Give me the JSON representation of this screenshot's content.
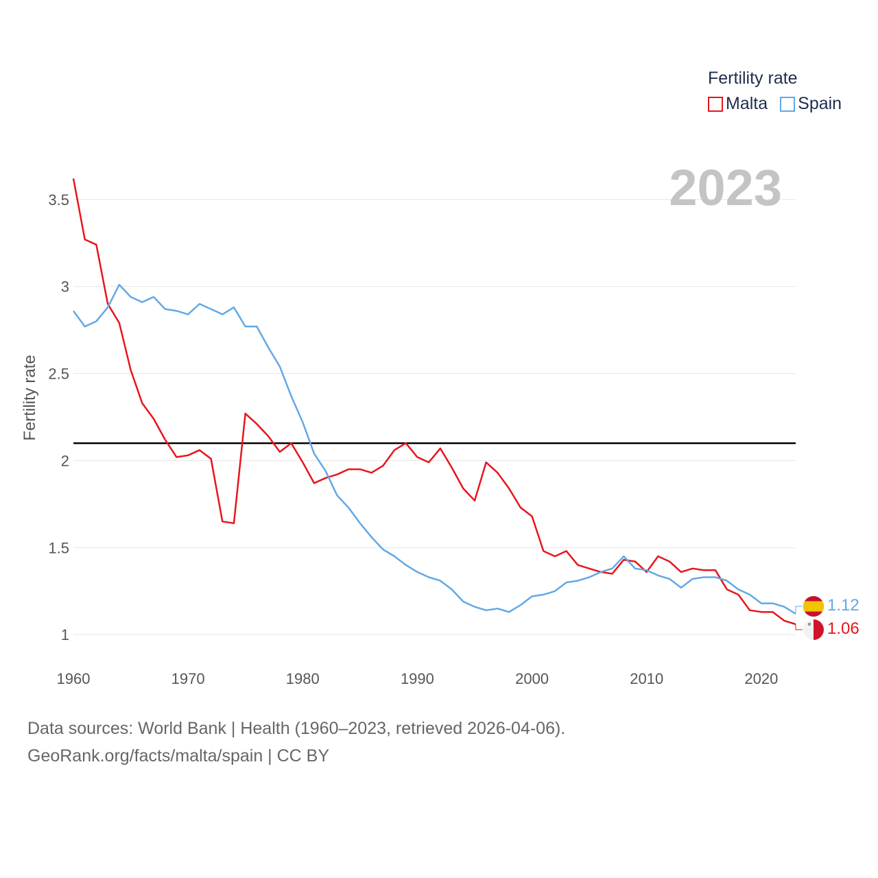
{
  "legend": {
    "title": "Fertility rate",
    "items": [
      {
        "label": "Malta",
        "color": "#e8141c"
      },
      {
        "label": "Spain",
        "color": "#62a8e5"
      }
    ]
  },
  "footer": {
    "line1": "Data sources: World Bank | Health (1960–2023, retrieved 2026-04-06).",
    "line2": "GeoRank.org/facts/malta/spain | CC BY"
  },
  "chart_data": {
    "type": "line",
    "title": "Fertility rate",
    "year_label": "2023",
    "xlabel": "",
    "ylabel": "Fertility rate",
    "xlim": [
      1960,
      2023
    ],
    "ylim": [
      0.93,
      3.7
    ],
    "x_ticks": [
      1960,
      1970,
      1980,
      1990,
      2000,
      2010,
      2020
    ],
    "y_ticks": [
      1,
      1.5,
      2,
      2.5,
      3,
      3.5
    ],
    "y_tick_labels": [
      "1",
      "1.5",
      "2",
      "2.5",
      "3",
      "3.5"
    ],
    "grid": true,
    "reference_line": {
      "y": 2.1,
      "color": "#000000"
    },
    "x": [
      1960,
      1961,
      1962,
      1963,
      1964,
      1965,
      1966,
      1967,
      1968,
      1969,
      1970,
      1971,
      1972,
      1973,
      1974,
      1975,
      1976,
      1977,
      1978,
      1979,
      1980,
      1981,
      1982,
      1983,
      1984,
      1985,
      1986,
      1987,
      1988,
      1989,
      1990,
      1991,
      1992,
      1993,
      1994,
      1995,
      1996,
      1997,
      1998,
      1999,
      2000,
      2001,
      2002,
      2003,
      2004,
      2005,
      2006,
      2007,
      2008,
      2009,
      2010,
      2011,
      2012,
      2013,
      2014,
      2015,
      2016,
      2017,
      2018,
      2019,
      2020,
      2021,
      2022,
      2023
    ],
    "series": [
      {
        "name": "Malta",
        "color": "#e8141c",
        "end_label": "1.06",
        "values": [
          3.62,
          3.27,
          3.24,
          2.9,
          2.79,
          2.52,
          2.33,
          2.24,
          2.12,
          2.02,
          2.03,
          2.06,
          2.01,
          1.65,
          1.64,
          2.27,
          2.21,
          2.14,
          2.05,
          2.1,
          1.99,
          1.87,
          1.9,
          1.92,
          1.95,
          1.95,
          1.93,
          1.97,
          2.06,
          2.1,
          2.02,
          1.99,
          2.07,
          1.96,
          1.84,
          1.77,
          1.99,
          1.93,
          1.84,
          1.73,
          1.68,
          1.48,
          1.45,
          1.48,
          1.4,
          1.38,
          1.36,
          1.35,
          1.43,
          1.42,
          1.36,
          1.45,
          1.42,
          1.36,
          1.38,
          1.37,
          1.37,
          1.26,
          1.23,
          1.14,
          1.13,
          1.13,
          1.08,
          1.06
        ]
      },
      {
        "name": "Spain",
        "color": "#62a8e5",
        "end_label": "1.12",
        "values": [
          2.86,
          2.77,
          2.8,
          2.88,
          3.01,
          2.94,
          2.91,
          2.94,
          2.87,
          2.86,
          2.84,
          2.9,
          2.87,
          2.84,
          2.88,
          2.77,
          2.77,
          2.65,
          2.54,
          2.37,
          2.22,
          2.04,
          1.94,
          1.8,
          1.73,
          1.64,
          1.56,
          1.49,
          1.45,
          1.4,
          1.36,
          1.33,
          1.31,
          1.26,
          1.19,
          1.16,
          1.14,
          1.15,
          1.13,
          1.17,
          1.22,
          1.23,
          1.25,
          1.3,
          1.31,
          1.33,
          1.36,
          1.38,
          1.45,
          1.38,
          1.37,
          1.34,
          1.32,
          1.27,
          1.32,
          1.33,
          1.33,
          1.31,
          1.26,
          1.23,
          1.18,
          1.18,
          1.16,
          1.12
        ]
      }
    ]
  }
}
